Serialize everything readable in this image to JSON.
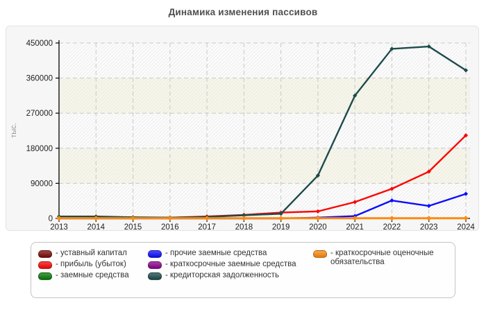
{
  "title": "Динамика изменения пассивов",
  "ylabel": "тыс.",
  "chart_data": {
    "type": "line",
    "x": [
      2013,
      2014,
      2015,
      2016,
      2017,
      2018,
      2019,
      2020,
      2021,
      2022,
      2023,
      2024
    ],
    "ylim": [
      0,
      450000
    ],
    "yticks": [
      0,
      90000,
      180000,
      270000,
      360000,
      450000
    ],
    "grid": true,
    "legend_position": "bottom",
    "band_colors": [
      "#fbfbfc",
      "#f7f6e9"
    ],
    "grid_color": "#c8c8c8",
    "hatch_color": "#e3e3e3",
    "axis_color": "#000000",
    "series": [
      {
        "name": "уставный капитал",
        "color": "#7d0b06",
        "width": 2,
        "values": [
          10,
          10,
          10,
          10,
          10,
          10,
          10,
          10,
          10,
          10,
          10,
          10
        ]
      },
      {
        "name": "прибыль (убыток)",
        "color": "#fb0503",
        "width": 2.4,
        "values": [
          300,
          600,
          1000,
          2000,
          5000,
          9000,
          15000,
          18000,
          42000,
          76000,
          120000,
          213000
        ]
      },
      {
        "name": "заемные средства",
        "color": "#077d07",
        "width": 2,
        "values": [
          0,
          0,
          0,
          0,
          0,
          0,
          0,
          0,
          0,
          0,
          0,
          0
        ]
      },
      {
        "name": "прочие заемные средства",
        "color": "#0d0dff",
        "width": 2.4,
        "values": [
          0,
          0,
          0,
          0,
          0,
          0,
          0,
          2000,
          6000,
          46000,
          32000,
          63000
        ]
      },
      {
        "name": "краткосрочные заемные средства",
        "color": "#8b008b",
        "width": 2,
        "values": [
          0,
          0,
          0,
          2000,
          2000,
          0,
          0,
          0,
          0,
          0,
          0,
          0
        ]
      },
      {
        "name": "кредиторская задолженность",
        "color": "#1d4b4b",
        "width": 2.4,
        "values": [
          5000,
          5000,
          3000,
          2000,
          4000,
          8000,
          12000,
          110000,
          315000,
          435000,
          441000,
          380000
        ]
      },
      {
        "name": "краткосрочные оценочные обязательства",
        "color": "#fe8a0e",
        "width": 3,
        "values": [
          500,
          500,
          500,
          500,
          500,
          500,
          500,
          500,
          500,
          500,
          500,
          500
        ]
      }
    ]
  },
  "legend": {
    "columns": [
      [
        0,
        1,
        2
      ],
      [
        3,
        4,
        5
      ],
      [
        6
      ]
    ]
  }
}
